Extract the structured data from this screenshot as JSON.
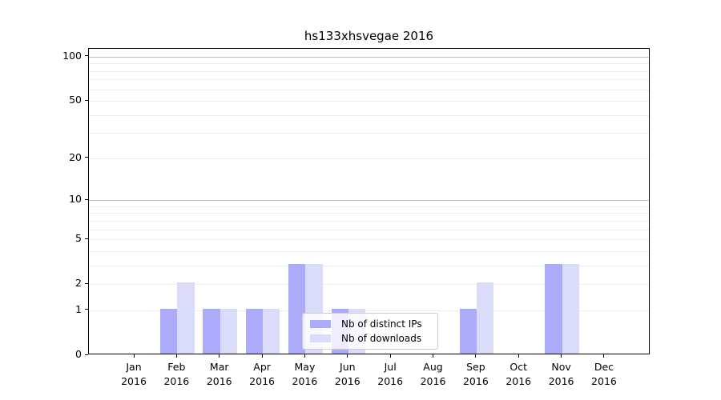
{
  "chart_data": {
    "type": "bar",
    "title": "hs133xhsvegae 2016",
    "categories": [
      "Jan 2016",
      "Feb 2016",
      "Mar 2016",
      "Apr 2016",
      "May 2016",
      "Jun 2016",
      "Jul 2016",
      "Aug 2016",
      "Sep 2016",
      "Oct 2016",
      "Nov 2016",
      "Dec 2016"
    ],
    "series": [
      {
        "name": "Nb of distinct IPs",
        "color": "#ababfa",
        "values": [
          0,
          1,
          1,
          1,
          3,
          1,
          0,
          0,
          1,
          0,
          3,
          0
        ]
      },
      {
        "name": "Nb of downloads",
        "color": "#dbdbfa",
        "values": [
          0,
          2,
          1,
          1,
          3,
          1,
          0,
          0,
          2,
          0,
          3,
          0
        ]
      }
    ],
    "xlabel": "",
    "ylabel": "",
    "yscale": "log1p",
    "yticks": [
      0,
      1,
      2,
      5,
      10,
      20,
      50,
      100
    ],
    "ylim": [
      0,
      113
    ],
    "grid": {
      "minor_values": [
        1,
        2,
        3,
        4,
        5,
        6,
        7,
        8,
        9,
        20,
        30,
        40,
        50,
        60,
        70,
        80,
        90
      ],
      "major_values": [
        10,
        100
      ],
      "minor_color": "#ededed",
      "major_color": "#bdbdbd"
    },
    "legend": {
      "position": "lower center-left",
      "entries": [
        "Nb of distinct IPs",
        "Nb of downloads"
      ]
    }
  },
  "colors": {
    "background": "#ffffff",
    "spine": "#000000",
    "text": "#000000",
    "legend_border": "#cccccc",
    "legend_background": "rgba(255,255,255,0.8)"
  }
}
